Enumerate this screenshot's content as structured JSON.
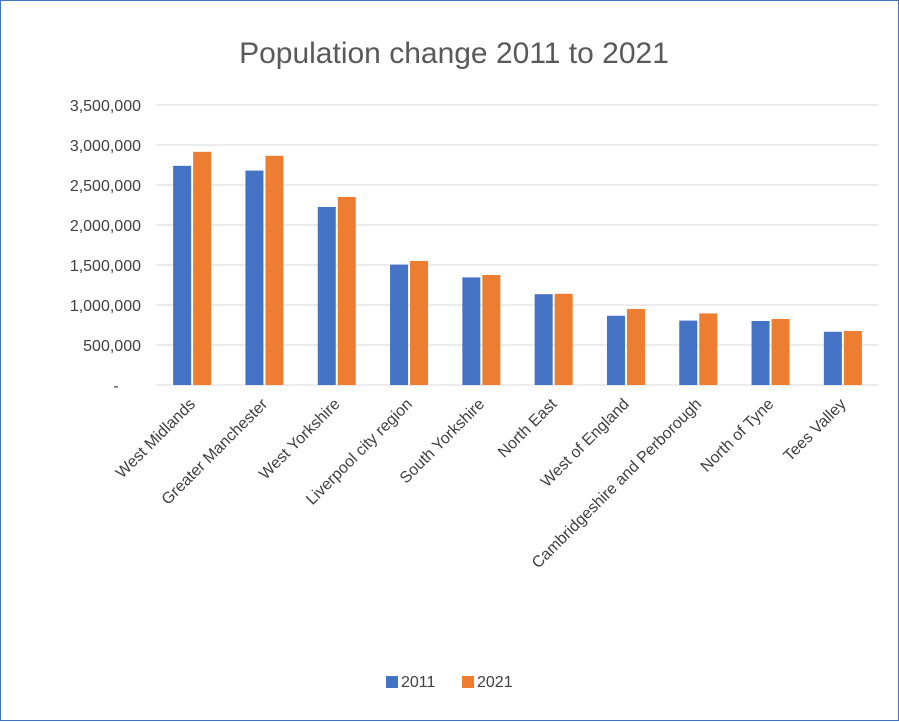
{
  "chart_data": {
    "type": "bar",
    "title": "Population change 2011 to 2021",
    "xlabel": "",
    "ylabel": "",
    "categories": [
      "West Midlands",
      "Greater Manchester",
      "West Yorkshire",
      "Liverpool city region",
      "South Yorkshire",
      "North East",
      "West of England",
      "Cambridgeshire and Perborough",
      "North of Tyne",
      "Tees Valley"
    ],
    "series": [
      {
        "name": "2011",
        "color": "#4472c4",
        "values": [
          2740000,
          2680000,
          2225000,
          1505000,
          1345000,
          1135000,
          865000,
          805000,
          800000,
          665000
        ]
      },
      {
        "name": "2021",
        "color": "#ed7d31",
        "values": [
          2915000,
          2865000,
          2350000,
          1550000,
          1375000,
          1140000,
          950000,
          895000,
          825000,
          675000
        ]
      }
    ],
    "ylim": [
      0,
      3500000
    ],
    "yticks": [
      0,
      500000,
      1000000,
      1500000,
      2000000,
      2500000,
      3000000,
      3500000
    ],
    "ytick_labels": [
      "-",
      "500,000",
      "1,000,000",
      "1,500,000",
      "2,000,000",
      "2,500,000",
      "3,000,000",
      "3,500,000"
    ],
    "grid": true,
    "legend_position": "bottom"
  }
}
